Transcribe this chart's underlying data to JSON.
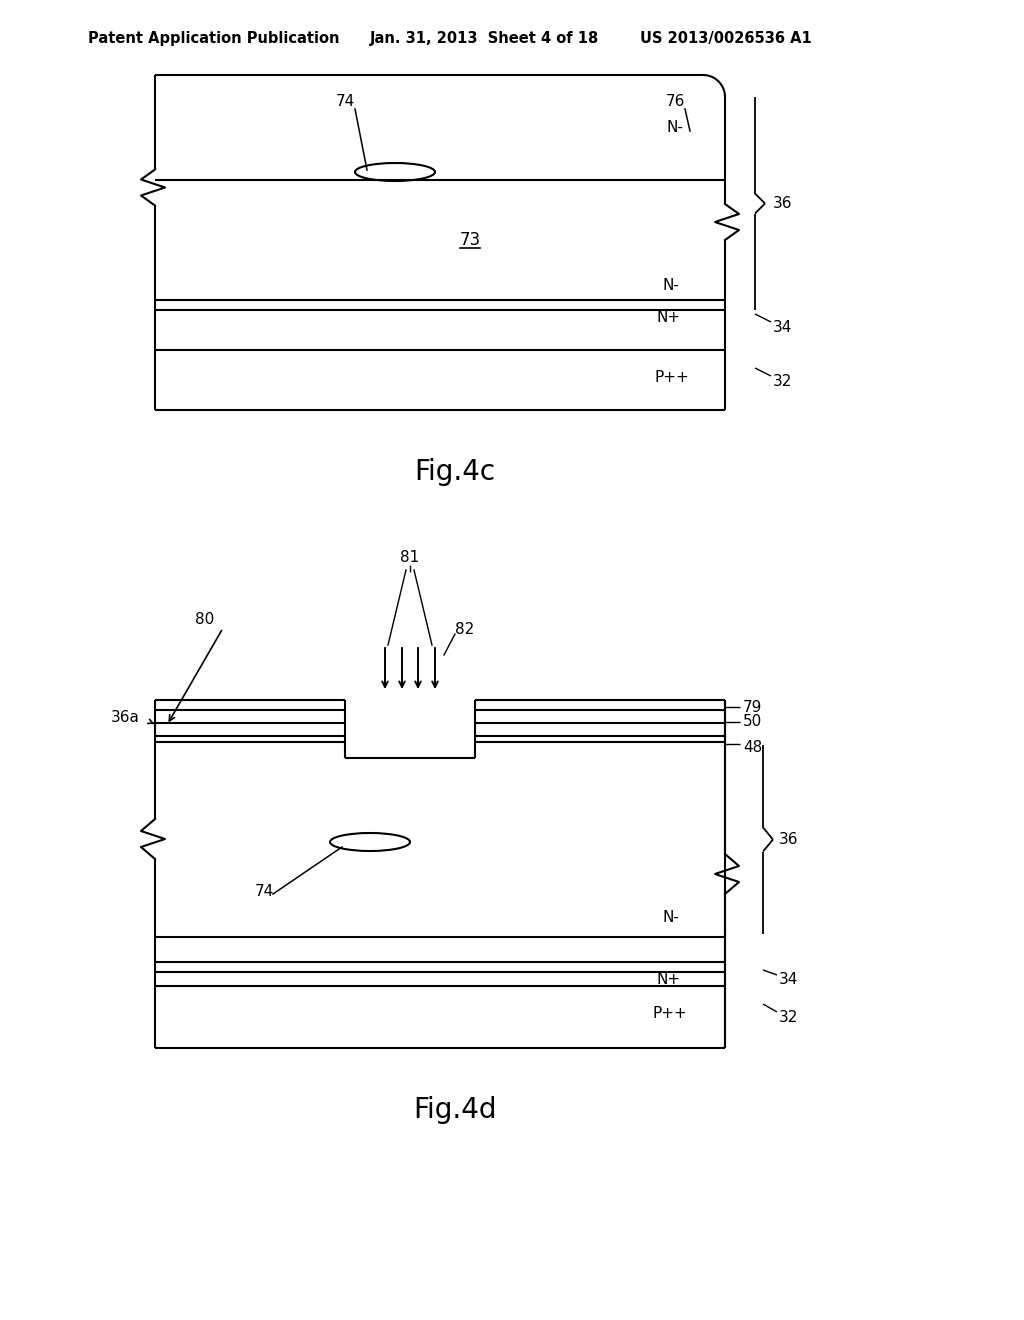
{
  "bg_color": "#ffffff",
  "header_text": "Patent Application Publication",
  "header_date": "Jan. 31, 2013  Sheet 4 of 18",
  "header_patent": "US 2013/0026536 A1",
  "fig4c_label": "Fig.4c",
  "fig4d_label": "Fig.4d",
  "line_color": "#000000",
  "line_width": 1.5
}
